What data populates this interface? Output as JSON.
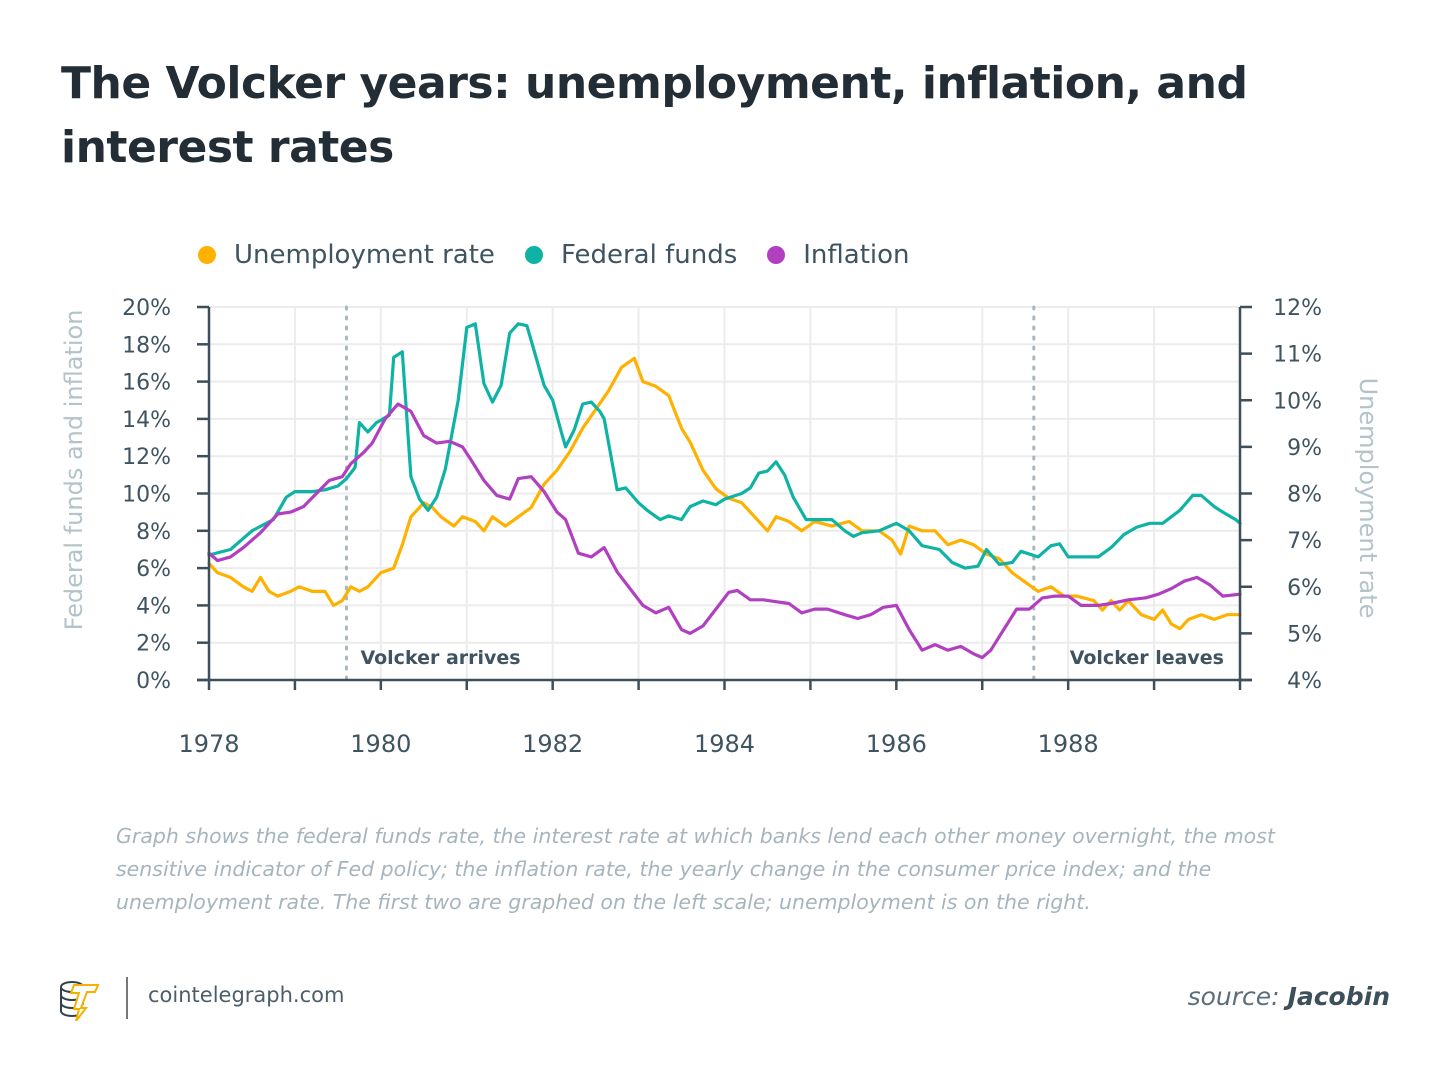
{
  "header": {
    "title": "The Volcker years: unemployment, inflation, and interest rates"
  },
  "legend": [
    {
      "label": "Unemployment rate",
      "color": "#ffb100"
    },
    {
      "label": "Federal funds",
      "color": "#0fb3a5"
    },
    {
      "label": "Inflation",
      "color": "#b140c1"
    }
  ],
  "caption": "Graph shows the federal funds rate, the interest rate at which banks lend each other money overnight, the most sensitive indicator of Fed policy; the inflation rate, the yearly change in the consumer price index; and the unemployment rate. The first two are graphed on the left scale; unemployment is on the right.",
  "footer": {
    "logo_icon": "cointelegraph-logo-icon",
    "domain": "cointelegraph.com",
    "source_prefix": "source:",
    "source_name": "Jacobin"
  },
  "chart_data": {
    "type": "line",
    "title": "The Volcker years: unemployment, inflation, and interest rates",
    "xlabel": "",
    "ylabel_left": "Federal funds and inflation",
    "ylabel_right": "Unemployment rate",
    "xlim": [
      1978,
      1990
    ],
    "x_ticks": [
      1978,
      1979,
      1980,
      1981,
      1982,
      1983,
      1984,
      1985,
      1986,
      1987,
      1988,
      1989,
      1990
    ],
    "x_tick_labels": [
      "1978",
      "1980",
      "1982",
      "1984",
      "1986",
      "1988"
    ],
    "x_tick_label_values": [
      1978,
      1980,
      1982,
      1984,
      1986,
      1988
    ],
    "ylim_left": [
      0,
      20
    ],
    "y_ticks_left": [
      "0%",
      "2%",
      "4%",
      "6%",
      "8%",
      "10%",
      "12%",
      "14%",
      "16%",
      "18%",
      "20%"
    ],
    "ylim_right": [
      4,
      12
    ],
    "y_ticks_right": [
      "4%",
      "5%",
      "6%",
      "7%",
      "8%",
      "9%",
      "10%",
      "11%",
      "12%"
    ],
    "grid": true,
    "legend_position": "top-left",
    "annotations": [
      {
        "label": "Volcker arrives",
        "x": 1979.6
      },
      {
        "label": "Volcker leaves",
        "x": 1987.6
      }
    ],
    "series": [
      {
        "name": "Federal funds",
        "axis": "left",
        "color": "#0fb3a5",
        "points": [
          [
            1978.0,
            6.7
          ],
          [
            1978.25,
            7.0
          ],
          [
            1978.5,
            8.0
          ],
          [
            1978.75,
            8.6
          ],
          [
            1978.9,
            9.8
          ],
          [
            1979.0,
            10.1
          ],
          [
            1979.2,
            10.1
          ],
          [
            1979.35,
            10.2
          ],
          [
            1979.5,
            10.4
          ],
          [
            1979.6,
            10.8
          ],
          [
            1979.7,
            11.4
          ],
          [
            1979.75,
            13.8
          ],
          [
            1979.85,
            13.3
          ],
          [
            1979.95,
            13.8
          ],
          [
            1980.1,
            14.2
          ],
          [
            1980.15,
            17.3
          ],
          [
            1980.25,
            17.6
          ],
          [
            1980.35,
            10.9
          ],
          [
            1980.45,
            9.7
          ],
          [
            1980.55,
            9.1
          ],
          [
            1980.65,
            9.8
          ],
          [
            1980.75,
            11.3
          ],
          [
            1980.9,
            15.0
          ],
          [
            1981.0,
            18.9
          ],
          [
            1981.1,
            19.1
          ],
          [
            1981.2,
            15.9
          ],
          [
            1981.3,
            14.9
          ],
          [
            1981.4,
            15.8
          ],
          [
            1981.5,
            18.6
          ],
          [
            1981.6,
            19.1
          ],
          [
            1981.7,
            19.0
          ],
          [
            1981.8,
            17.4
          ],
          [
            1981.9,
            15.8
          ],
          [
            1982.0,
            15.0
          ],
          [
            1982.1,
            13.3
          ],
          [
            1982.15,
            12.5
          ],
          [
            1982.25,
            13.4
          ],
          [
            1982.35,
            14.8
          ],
          [
            1982.45,
            14.9
          ],
          [
            1982.55,
            14.4
          ],
          [
            1982.6,
            14.0
          ],
          [
            1982.75,
            10.2
          ],
          [
            1982.85,
            10.3
          ],
          [
            1983.0,
            9.5
          ],
          [
            1983.1,
            9.1
          ],
          [
            1983.25,
            8.6
          ],
          [
            1983.35,
            8.8
          ],
          [
            1983.5,
            8.6
          ],
          [
            1983.6,
            9.3
          ],
          [
            1983.75,
            9.6
          ],
          [
            1983.9,
            9.4
          ],
          [
            1984.0,
            9.7
          ],
          [
            1984.2,
            10.0
          ],
          [
            1984.3,
            10.3
          ],
          [
            1984.4,
            11.1
          ],
          [
            1984.5,
            11.2
          ],
          [
            1984.6,
            11.7
          ],
          [
            1984.7,
            11.0
          ],
          [
            1984.8,
            9.8
          ],
          [
            1984.95,
            8.6
          ],
          [
            1985.1,
            8.6
          ],
          [
            1985.25,
            8.6
          ],
          [
            1985.4,
            8.0
          ],
          [
            1985.5,
            7.7
          ],
          [
            1985.6,
            7.9
          ],
          [
            1985.8,
            8.0
          ],
          [
            1986.0,
            8.4
          ],
          [
            1986.15,
            8.0
          ],
          [
            1986.3,
            7.2
          ],
          [
            1986.5,
            7.0
          ],
          [
            1986.65,
            6.3
          ],
          [
            1986.8,
            6.0
          ],
          [
            1986.95,
            6.1
          ],
          [
            1987.05,
            7.0
          ],
          [
            1987.2,
            6.2
          ],
          [
            1987.35,
            6.3
          ],
          [
            1987.45,
            6.9
          ],
          [
            1987.65,
            6.6
          ],
          [
            1987.8,
            7.2
          ],
          [
            1987.9,
            7.3
          ],
          [
            1988.0,
            6.6
          ],
          [
            1988.2,
            6.6
          ],
          [
            1988.35,
            6.6
          ],
          [
            1988.5,
            7.1
          ],
          [
            1988.65,
            7.8
          ],
          [
            1988.8,
            8.2
          ],
          [
            1988.95,
            8.4
          ],
          [
            1989.1,
            8.4
          ],
          [
            1989.3,
            9.1
          ],
          [
            1989.45,
            9.9
          ],
          [
            1989.55,
            9.9
          ],
          [
            1989.7,
            9.3
          ],
          [
            1989.8,
            9.0
          ],
          [
            1989.95,
            8.6
          ],
          [
            1990.0,
            8.4
          ]
        ]
      },
      {
        "name": "Inflation",
        "axis": "left",
        "color": "#b140c1",
        "points": [
          [
            1978.0,
            6.8
          ],
          [
            1978.1,
            6.4
          ],
          [
            1978.25,
            6.6
          ],
          [
            1978.4,
            7.1
          ],
          [
            1978.6,
            7.9
          ],
          [
            1978.8,
            8.9
          ],
          [
            1978.95,
            9.0
          ],
          [
            1979.1,
            9.3
          ],
          [
            1979.25,
            10.0
          ],
          [
            1979.4,
            10.7
          ],
          [
            1979.55,
            10.9
          ],
          [
            1979.65,
            11.6
          ],
          [
            1979.8,
            12.2
          ],
          [
            1979.9,
            12.7
          ],
          [
            1980.05,
            14.0
          ],
          [
            1980.2,
            14.8
          ],
          [
            1980.35,
            14.4
          ],
          [
            1980.5,
            13.1
          ],
          [
            1980.65,
            12.7
          ],
          [
            1980.8,
            12.8
          ],
          [
            1980.95,
            12.5
          ],
          [
            1981.05,
            11.8
          ],
          [
            1981.2,
            10.7
          ],
          [
            1981.35,
            9.9
          ],
          [
            1981.5,
            9.7
          ],
          [
            1981.6,
            10.8
          ],
          [
            1981.75,
            10.9
          ],
          [
            1981.9,
            10.1
          ],
          [
            1982.05,
            9.0
          ],
          [
            1982.15,
            8.6
          ],
          [
            1982.3,
            6.8
          ],
          [
            1982.45,
            6.6
          ],
          [
            1982.6,
            7.1
          ],
          [
            1982.75,
            5.8
          ],
          [
            1982.9,
            4.9
          ],
          [
            1983.05,
            4.0
          ],
          [
            1983.2,
            3.6
          ],
          [
            1983.35,
            3.9
          ],
          [
            1983.5,
            2.7
          ],
          [
            1983.6,
            2.5
          ],
          [
            1983.75,
            2.9
          ],
          [
            1983.9,
            3.8
          ],
          [
            1984.05,
            4.7
          ],
          [
            1984.15,
            4.8
          ],
          [
            1984.3,
            4.3
          ],
          [
            1984.45,
            4.3
          ],
          [
            1984.6,
            4.2
          ],
          [
            1984.75,
            4.1
          ],
          [
            1984.9,
            3.6
          ],
          [
            1985.05,
            3.8
          ],
          [
            1985.2,
            3.8
          ],
          [
            1985.4,
            3.5
          ],
          [
            1985.55,
            3.3
          ],
          [
            1985.7,
            3.5
          ],
          [
            1985.85,
            3.9
          ],
          [
            1986.0,
            4.0
          ],
          [
            1986.15,
            2.7
          ],
          [
            1986.3,
            1.6
          ],
          [
            1986.45,
            1.9
          ],
          [
            1986.6,
            1.6
          ],
          [
            1986.75,
            1.8
          ],
          [
            1986.9,
            1.4
          ],
          [
            1987.0,
            1.2
          ],
          [
            1987.1,
            1.6
          ],
          [
            1987.25,
            2.7
          ],
          [
            1987.4,
            3.8
          ],
          [
            1987.55,
            3.8
          ],
          [
            1987.7,
            4.4
          ],
          [
            1987.85,
            4.5
          ],
          [
            1988.0,
            4.5
          ],
          [
            1988.15,
            4.0
          ],
          [
            1988.35,
            4.0
          ],
          [
            1988.5,
            4.1
          ],
          [
            1988.7,
            4.3
          ],
          [
            1988.9,
            4.4
          ],
          [
            1989.05,
            4.6
          ],
          [
            1989.2,
            4.9
          ],
          [
            1989.35,
            5.3
          ],
          [
            1989.5,
            5.5
          ],
          [
            1989.65,
            5.1
          ],
          [
            1989.8,
            4.5
          ],
          [
            1990.0,
            4.6
          ]
        ]
      },
      {
        "name": "Unemployment rate",
        "axis": "right",
        "color": "#ffb100",
        "points": [
          [
            1978.0,
            6.5
          ],
          [
            1978.1,
            6.3
          ],
          [
            1978.25,
            6.2
          ],
          [
            1978.4,
            6.0
          ],
          [
            1978.5,
            5.9
          ],
          [
            1978.6,
            6.2
          ],
          [
            1978.7,
            5.9
          ],
          [
            1978.8,
            5.8
          ],
          [
            1978.95,
            5.9
          ],
          [
            1979.05,
            6.0
          ],
          [
            1979.2,
            5.9
          ],
          [
            1979.35,
            5.9
          ],
          [
            1979.45,
            5.6
          ],
          [
            1979.55,
            5.7
          ],
          [
            1979.65,
            6.0
          ],
          [
            1979.75,
            5.9
          ],
          [
            1979.85,
            6.0
          ],
          [
            1980.0,
            6.3
          ],
          [
            1980.15,
            6.4
          ],
          [
            1980.25,
            6.9
          ],
          [
            1980.35,
            7.5
          ],
          [
            1980.5,
            7.8
          ],
          [
            1980.6,
            7.7
          ],
          [
            1980.7,
            7.5
          ],
          [
            1980.85,
            7.3
          ],
          [
            1980.95,
            7.5
          ],
          [
            1981.1,
            7.4
          ],
          [
            1981.2,
            7.2
          ],
          [
            1981.3,
            7.5
          ],
          [
            1981.45,
            7.3
          ],
          [
            1981.6,
            7.5
          ],
          [
            1981.75,
            7.7
          ],
          [
            1981.9,
            8.2
          ],
          [
            1982.05,
            8.5
          ],
          [
            1982.2,
            8.9
          ],
          [
            1982.35,
            9.4
          ],
          [
            1982.5,
            9.8
          ],
          [
            1982.65,
            10.2
          ],
          [
            1982.8,
            10.7
          ],
          [
            1982.95,
            10.9
          ],
          [
            1983.05,
            10.4
          ],
          [
            1983.2,
            10.3
          ],
          [
            1983.35,
            10.1
          ],
          [
            1983.5,
            9.4
          ],
          [
            1983.6,
            9.1
          ],
          [
            1983.75,
            8.5
          ],
          [
            1983.9,
            8.1
          ],
          [
            1984.05,
            7.9
          ],
          [
            1984.2,
            7.8
          ],
          [
            1984.35,
            7.5
          ],
          [
            1984.5,
            7.2
          ],
          [
            1984.6,
            7.5
          ],
          [
            1984.75,
            7.4
          ],
          [
            1984.9,
            7.2
          ],
          [
            1985.05,
            7.4
          ],
          [
            1985.25,
            7.3
          ],
          [
            1985.45,
            7.4
          ],
          [
            1985.6,
            7.2
          ],
          [
            1985.8,
            7.2
          ],
          [
            1985.95,
            7.0
          ],
          [
            1986.05,
            6.7
          ],
          [
            1986.15,
            7.3
          ],
          [
            1986.3,
            7.2
          ],
          [
            1986.45,
            7.2
          ],
          [
            1986.6,
            6.9
          ],
          [
            1986.75,
            7.0
          ],
          [
            1986.9,
            6.9
          ],
          [
            1987.05,
            6.7
          ],
          [
            1987.2,
            6.6
          ],
          [
            1987.35,
            6.3
          ],
          [
            1987.5,
            6.1
          ],
          [
            1987.65,
            5.9
          ],
          [
            1987.8,
            6.0
          ],
          [
            1987.95,
            5.8
          ],
          [
            1988.1,
            5.8
          ],
          [
            1988.3,
            5.7
          ],
          [
            1988.4,
            5.5
          ],
          [
            1988.5,
            5.7
          ],
          [
            1988.6,
            5.5
          ],
          [
            1988.7,
            5.7
          ],
          [
            1988.85,
            5.4
          ],
          [
            1989.0,
            5.3
          ],
          [
            1989.1,
            5.5
          ],
          [
            1989.2,
            5.2
          ],
          [
            1989.3,
            5.1
          ],
          [
            1989.4,
            5.3
          ],
          [
            1989.55,
            5.4
          ],
          [
            1989.7,
            5.3
          ],
          [
            1989.85,
            5.4
          ],
          [
            1990.0,
            5.4
          ]
        ]
      }
    ]
  }
}
